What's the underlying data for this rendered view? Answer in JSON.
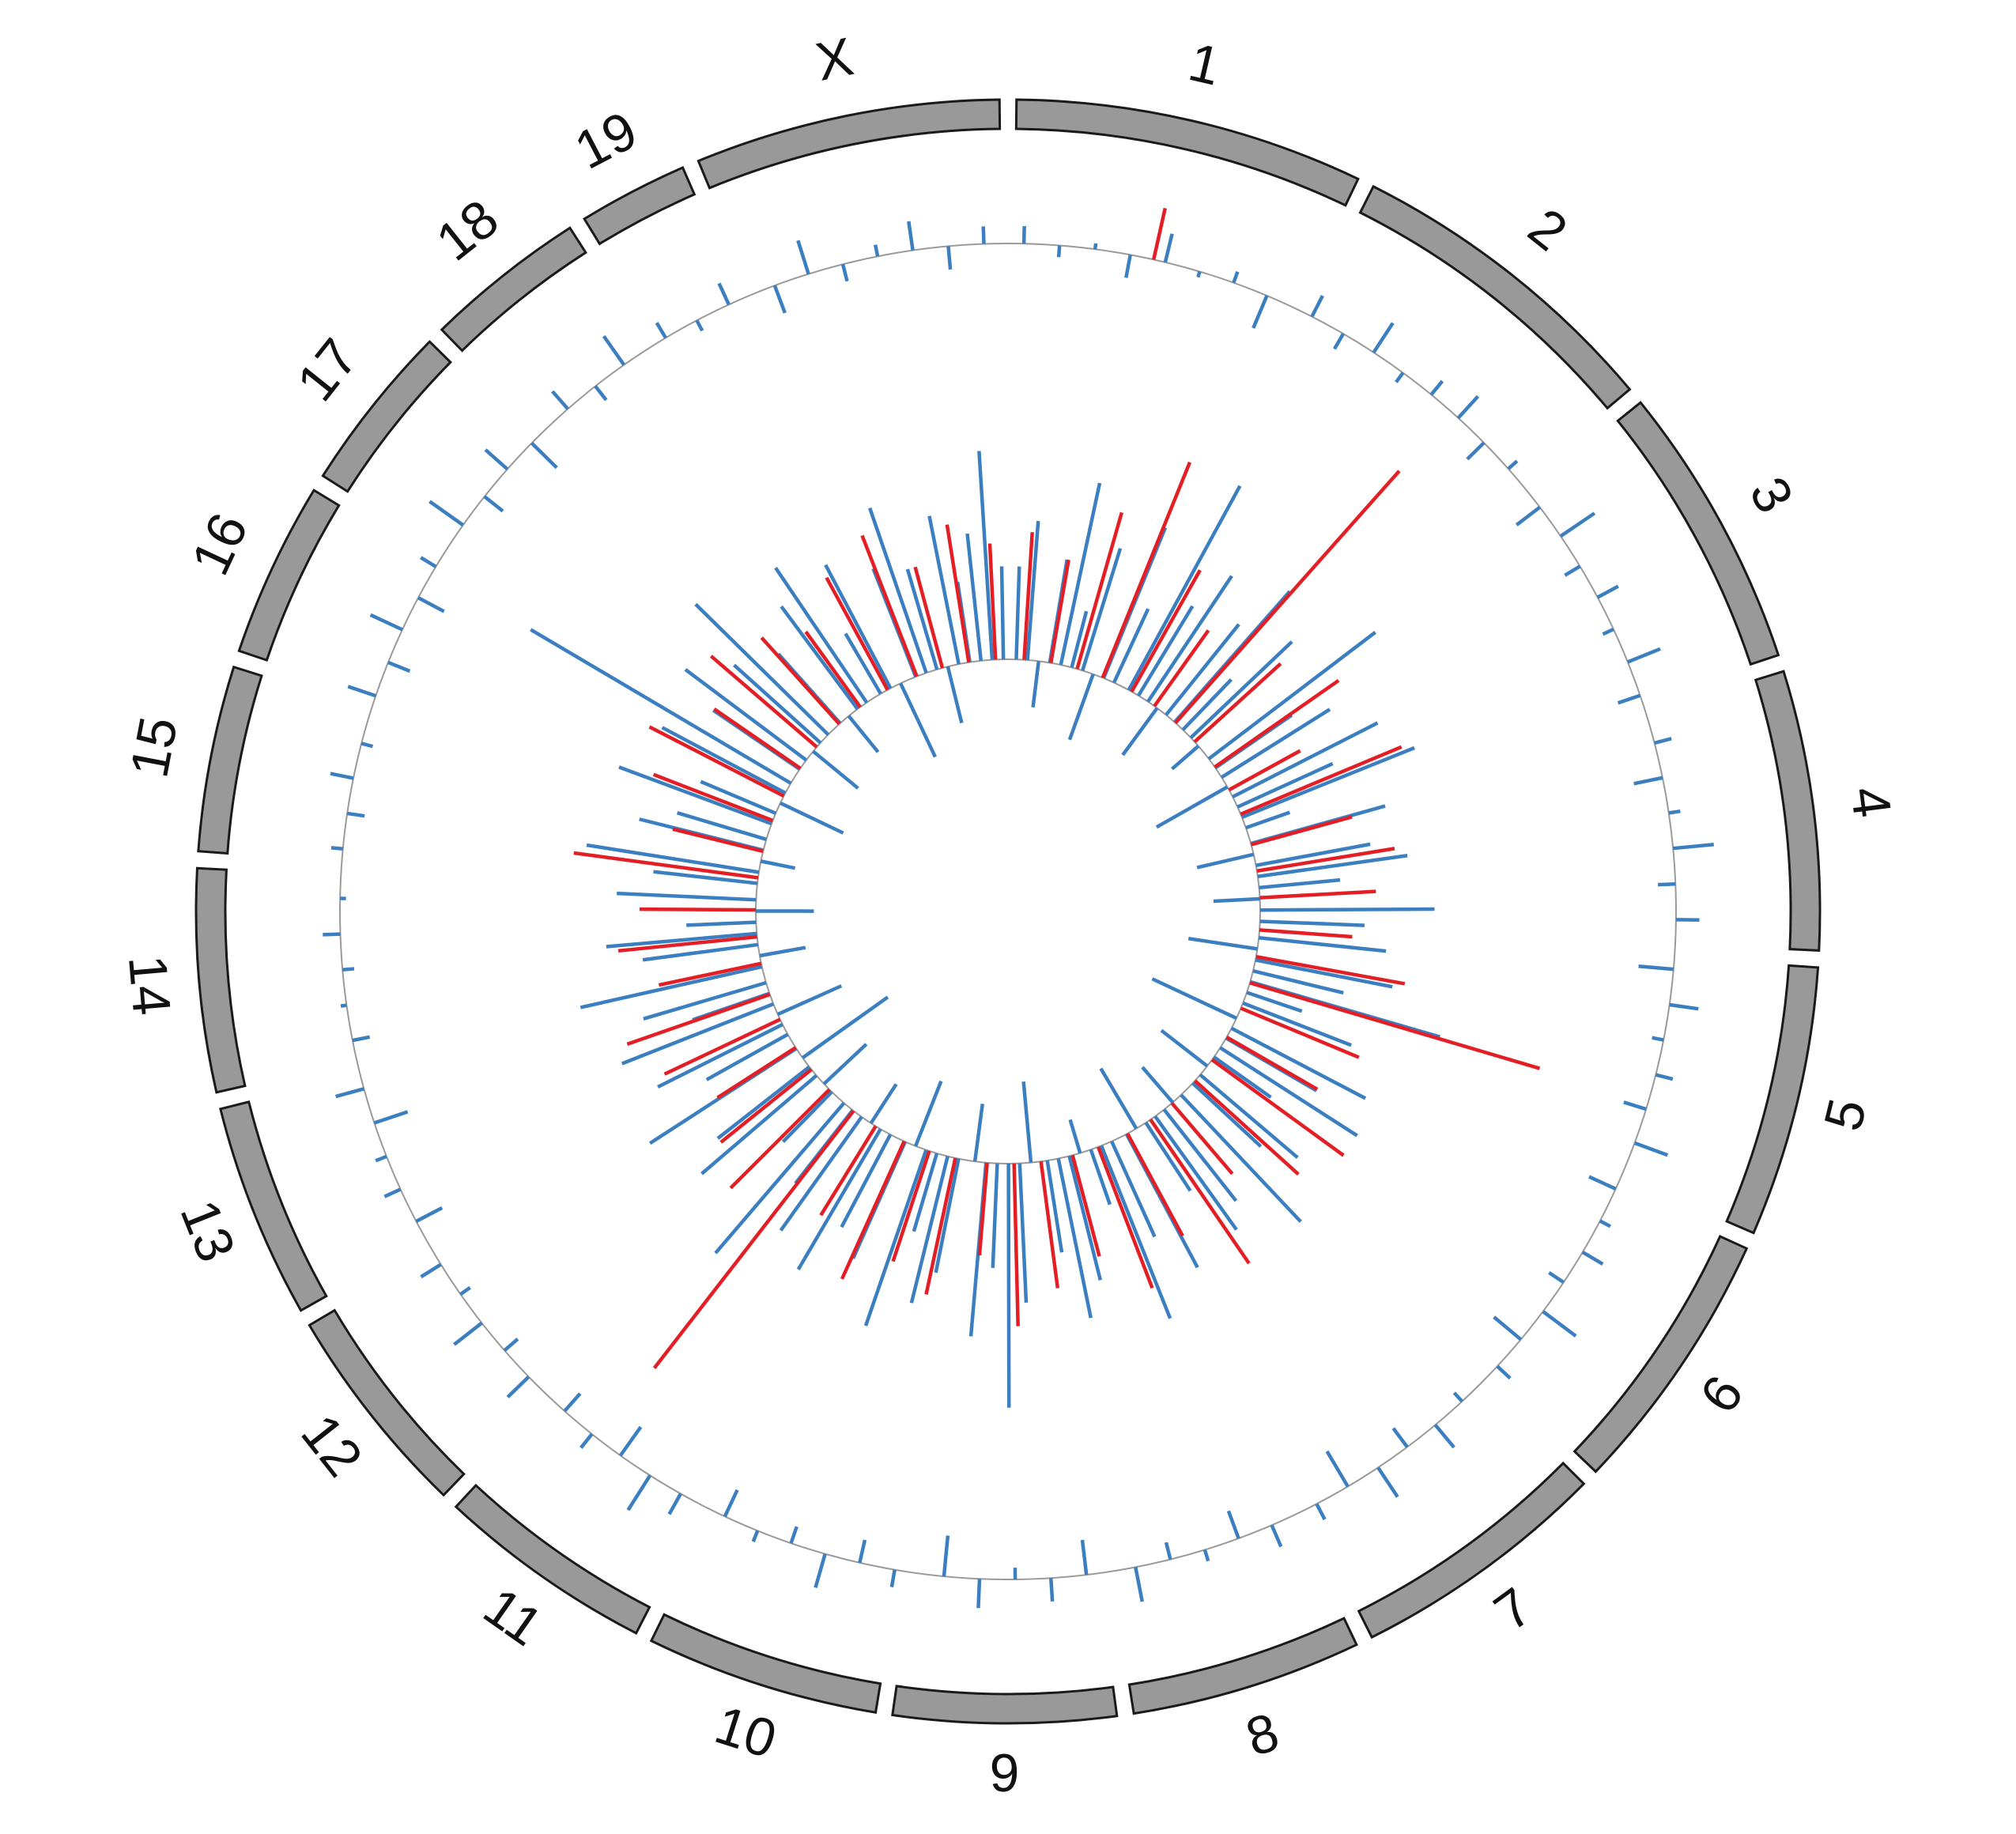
{
  "chart_data": {
    "type": "circos",
    "chromosomes": {
      "labels": [
        "1",
        "2",
        "3",
        "4",
        "5",
        "6",
        "7",
        "8",
        "9",
        "10",
        "11",
        "12",
        "13",
        "14",
        "15",
        "16",
        "17",
        "18",
        "19",
        "X"
      ],
      "lengths": [
        195.5,
        182.1,
        160.0,
        156.5,
        151.8,
        149.7,
        145.4,
        129.4,
        124.6,
        130.7,
        122.1,
        120.1,
        120.4,
        124.9,
        104.0,
        98.2,
        95.0,
        90.7,
        61.4,
        171.0
      ],
      "color": "#999999"
    },
    "tracks": [
      {
        "ylim": [
          -1,
          1
        ],
        "series": [
          {
            "color": "#3b7fc0",
            "x": [
              6,
              30,
              54,
              78,
              102,
              126,
              150,
              174,
              198,
              222,
              246,
              270,
              294,
              318,
              342,
              366,
              390,
              414,
              438,
              462,
              486,
              510,
              534,
              558,
              582,
              606,
              630,
              654,
              678,
              702,
              726,
              750,
              774,
              798,
              822,
              846,
              870,
              894,
              918,
              942,
              966,
              990,
              1014,
              1038,
              1062,
              1086,
              1110,
              1134,
              1158,
              1182,
              1206,
              1230,
              1254,
              1278,
              1302,
              1326,
              1350,
              1374,
              1398,
              1422,
              1446,
              1470,
              1494,
              1518,
              1542,
              1566,
              1590,
              1614,
              1638,
              1662,
              1686,
              1710,
              1734,
              1758,
              1782,
              1806,
              1830,
              1854,
              1878,
              1902,
              1926,
              1950,
              1974,
              1998,
              2022,
              2046,
              2070,
              2094,
              2118,
              2142,
              2166,
              2190,
              2214,
              2238,
              2262,
              2286,
              2310,
              2334,
              2358,
              2382,
              2406,
              2430,
              2454,
              2478,
              2502,
              2526,
              2550,
              2574,
              2598,
              2622
            ],
            "values": [
              0.3,
              -0.2,
              0.1,
              -0.4,
              0.5,
              -0.1,
              0.2,
              -0.6,
              0.4,
              -0.3,
              0.6,
              -0.2,
              0.3,
              0.5,
              -0.4,
              0.2,
              -0.5,
              0.7,
              -0.3,
              0.4,
              -0.2,
              0.6,
              -0.4,
              0.3,
              -0.5,
              0.2,
              0.7,
              -0.3,
              0.4,
              -0.6,
              0.5,
              -0.2,
              0.3,
              -0.4,
              0.6,
              -0.5,
              0.2,
              0.4,
              -0.3,
              0.7,
              -0.6,
              0.3,
              -0.2,
              0.5,
              -0.4,
              0.6,
              -0.7,
              0.3,
              0.4,
              -0.5,
              0.2,
              -0.3,
              0.6,
              -0.6,
              0.4,
              -0.2,
              0.5,
              -0.7,
              0.3,
              -0.4,
              0.6,
              -0.3,
              0.2,
              -0.5,
              0.4,
              0.7,
              -0.6,
              0.3,
              -0.4,
              0.5,
              -0.3,
              0.6,
              -0.2,
              0.4,
              -0.5,
              0.3,
              0.2,
              -0.6,
              0.5,
              -0.3,
              0.1,
              -0.2,
              0.3,
              -0.1,
              0.2,
              -0.3,
              0.4,
              -0.2,
              0.5,
              -0.4,
              0.6,
              -0.5,
              0.3,
              0.7,
              -0.4,
              0.5,
              -0.6,
              0.4,
              -0.3,
              0.6,
              0.3,
              -0.2,
              0.4,
              -0.5,
              0.6,
              -0.3,
              0.2,
              0.5,
              -0.4,
              0.3
            ]
          },
          {
            "color": "#e31e24",
            "x": [
              94
            ],
            "values": [
              0.9
            ]
          }
        ]
      },
      {
        "ylim": [
          -1,
          3
        ],
        "series": [
          {
            "color": "#3b7fc0",
            "x": [
              10,
              30,
              50,
              70,
              90,
              110,
              130,
              150,
              170,
              190,
              210,
              230,
              250,
              270,
              290,
              310,
              330,
              350,
              370,
              390,
              410,
              430,
              450,
              470,
              490,
              510,
              530,
              550,
              570,
              590,
              610,
              630,
              650,
              670,
              690,
              710,
              730,
              750,
              770,
              790,
              810,
              830,
              850,
              870,
              890,
              910,
              930,
              950,
              970,
              990,
              1010,
              1030,
              1050,
              1070,
              1090,
              1110,
              1130,
              1150,
              1170,
              1190,
              1210,
              1230,
              1250,
              1270,
              1290,
              1310,
              1330,
              1350,
              1370,
              1390,
              1410,
              1430,
              1450,
              1470,
              1490,
              1510,
              1530,
              1550,
              1570,
              1590,
              1610,
              1630,
              1650,
              1670,
              1690,
              1710,
              1730,
              1750,
              1770,
              1790,
              1810,
              1830,
              1850,
              1870,
              1890,
              1910,
              1930,
              1950,
              1970,
              1990,
              2010,
              2030,
              2050,
              2070,
              2090,
              2110,
              2130,
              2150,
              2170,
              2190,
              2210,
              2230,
              2250,
              2270,
              2290,
              2310,
              2330,
              2350,
              2370,
              2390,
              2410,
              2430,
              2450,
              2470,
              2490,
              2510,
              2530,
              2550,
              2570,
              2590,
              2610,
              2630
            ],
            "values": [
              0.8,
              1.2,
              -0.4,
              0.9,
              1.6,
              0.5,
              1.1,
              -0.6,
              1.4,
              0.7,
              2.0,
              0.9,
              1.3,
              -0.5,
              1.0,
              1.5,
              0.6,
              1.2,
              -0.3,
              1.8,
              0.8,
              1.1,
              -0.7,
              1.4,
              0.9,
              1.6,
              0.4,
              1.2,
              -0.5,
              1.0,
              1.3,
              0.7,
              -0.4,
              1.5,
              0.9,
              1.1,
              -0.6,
              1.2,
              0.8,
              1.7,
              0.5,
              1.0,
              -0.8,
              1.3,
              0.9,
              1.4,
              0.6,
              -0.5,
              1.1,
              0.8,
              1.5,
              -0.4,
              1.0,
              1.2,
              0.7,
              -0.6,
              1.3,
              0.9,
              1.6,
              0.5,
              -0.3,
              1.1,
              1.4,
              0.8,
              -0.7,
              1.2,
              2.1,
              0.9,
              1.5,
              -0.5,
              1.0,
              1.3,
              0.7,
              1.6,
              -0.6,
              1.1,
              0.9,
              1.4,
              -0.4,
              1.2,
              0.8,
              1.7,
              0.6,
              -0.5,
              1.3,
              1.0,
              -0.9,
              1.5,
              0.8,
              1.2,
              -0.6,
              1.4,
              0.7,
              1.1,
              1.6,
              -0.4,
              1.0,
              1.3,
              0.6,
              -0.5,
              1.2,
              0.9,
              1.5,
              -0.3,
              1.1,
              0.8,
              1.4,
              0.7,
              -0.6,
              1.2,
              2.6,
              0.9,
              1.3,
              -0.5,
              1.0,
              1.6,
              0.8,
              -0.4,
              1.1,
              1.4,
              0.6,
              1.2,
              -0.7,
              1.0,
              1.5,
              0.9,
              -0.5,
              1.3,
              0.7,
              1.1,
              1.8,
              0.8
            ]
          },
          {
            "color": "#e31e24",
            "x": [
              24,
              72,
              120,
              168,
              216,
              264,
              312,
              360,
              408,
              456,
              504,
              552,
              600,
              648,
              696,
              744,
              792,
              840,
              888,
              936,
              984,
              1032,
              1080,
              1128,
              1176,
              1224,
              1272,
              1320,
              1368,
              1416,
              1464,
              1512,
              1560,
              1608,
              1656,
              1704,
              1752,
              1800,
              1848,
              1896,
              1944,
              1992,
              2040,
              2088,
              2136,
              2184,
              2232,
              2280,
              2328,
              2376,
              2424,
              2472,
              2520,
              2568,
              2616
            ],
            "values": [
              1.1,
              0.9,
              1.4,
              2.0,
              1.2,
              0.8,
              2.9,
              1.0,
              1.3,
              0.7,
              1.5,
              0.9,
              1.2,
              1.0,
              0.8,
              1.3,
              2.6,
              1.1,
              0.9,
              1.4,
              1.2,
              0.8,
              1.5,
              1.0,
              1.3,
              0.9,
              1.1,
              1.4,
              0.8,
              1.2,
              1.0,
              1.3,
              0.9,
              2.8,
              1.2,
              1.0,
              0.8,
              1.1,
              1.3,
              0.9,
              1.2,
              1.0,
              1.6,
              0.8,
              1.1,
              1.3,
              0.9,
              1.2,
              1.0,
              0.8,
              1.1,
              1.3,
              0.9,
              1.2,
              1.0
            ]
          }
        ]
      }
    ]
  }
}
